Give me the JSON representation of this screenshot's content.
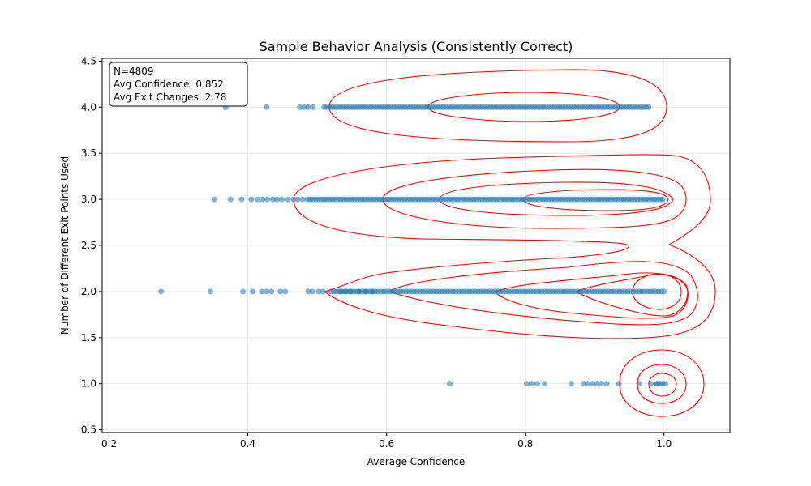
{
  "chart_data": {
    "type": "scatter",
    "title": "Sample Behavior Analysis (Consistently Correct)",
    "xlabel": "Average Confidence",
    "ylabel": "Number of Different Exit Points Used",
    "xlim": [
      0.19,
      1.095
    ],
    "ylim": [
      0.47,
      4.53
    ],
    "xticks": [
      0.2,
      0.4,
      0.6,
      0.8,
      1.0
    ],
    "xtick_labels": [
      "0.2",
      "0.4",
      "0.6",
      "0.8",
      "1.0"
    ],
    "yticks": [
      0.5,
      1.0,
      1.5,
      2.0,
      2.5,
      3.0,
      3.5,
      4.0,
      4.5
    ],
    "ytick_labels": [
      "0.5",
      "1.0",
      "1.5",
      "2.0",
      "2.5",
      "3.0",
      "3.5",
      "4.0",
      "4.5"
    ],
    "grid": true,
    "point_color": "#1f77b4",
    "contour_color": "#ff0000",
    "annotation": {
      "lines": [
        "N=4809",
        "Avg Confidence: 0.852",
        "Avg Exit Changes: 2.78"
      ],
      "placement": "top-left"
    },
    "scatter_sparse": [
      {
        "y": 4.0,
        "x": [
          0.368,
          0.427,
          0.475,
          0.481,
          0.487,
          0.494
        ]
      },
      {
        "y": 3.0,
        "x": [
          0.352,
          0.375,
          0.391,
          0.405,
          0.414,
          0.421,
          0.428,
          0.436,
          0.442,
          0.449,
          0.458,
          0.466,
          0.472,
          0.479,
          0.486
        ]
      },
      {
        "y": 2.0,
        "x": [
          0.275,
          0.346,
          0.393,
          0.407,
          0.42,
          0.427,
          0.434,
          0.447,
          0.454,
          0.487,
          0.493,
          0.502,
          0.508,
          0.534,
          0.541,
          0.548,
          0.56,
          0.57,
          0.58
        ]
      },
      {
        "y": 1.0,
        "x": [
          0.691,
          0.802,
          0.809,
          0.817,
          0.828,
          0.866,
          0.884,
          0.89,
          0.897,
          0.903,
          0.909,
          0.917,
          0.935,
          0.964,
          0.981,
          0.99
        ]
      }
    ],
    "scatter_dense": [
      {
        "y": 4.0,
        "x_range": [
          0.51,
          0.98
        ]
      },
      {
        "y": 3.0,
        "x_range": [
          0.49,
          1.0
        ]
      },
      {
        "y": 2.0,
        "x_range": [
          0.52,
          1.0
        ]
      },
      {
        "y": 1.0,
        "x_range": [
          0.99,
          1.005
        ]
      }
    ]
  }
}
